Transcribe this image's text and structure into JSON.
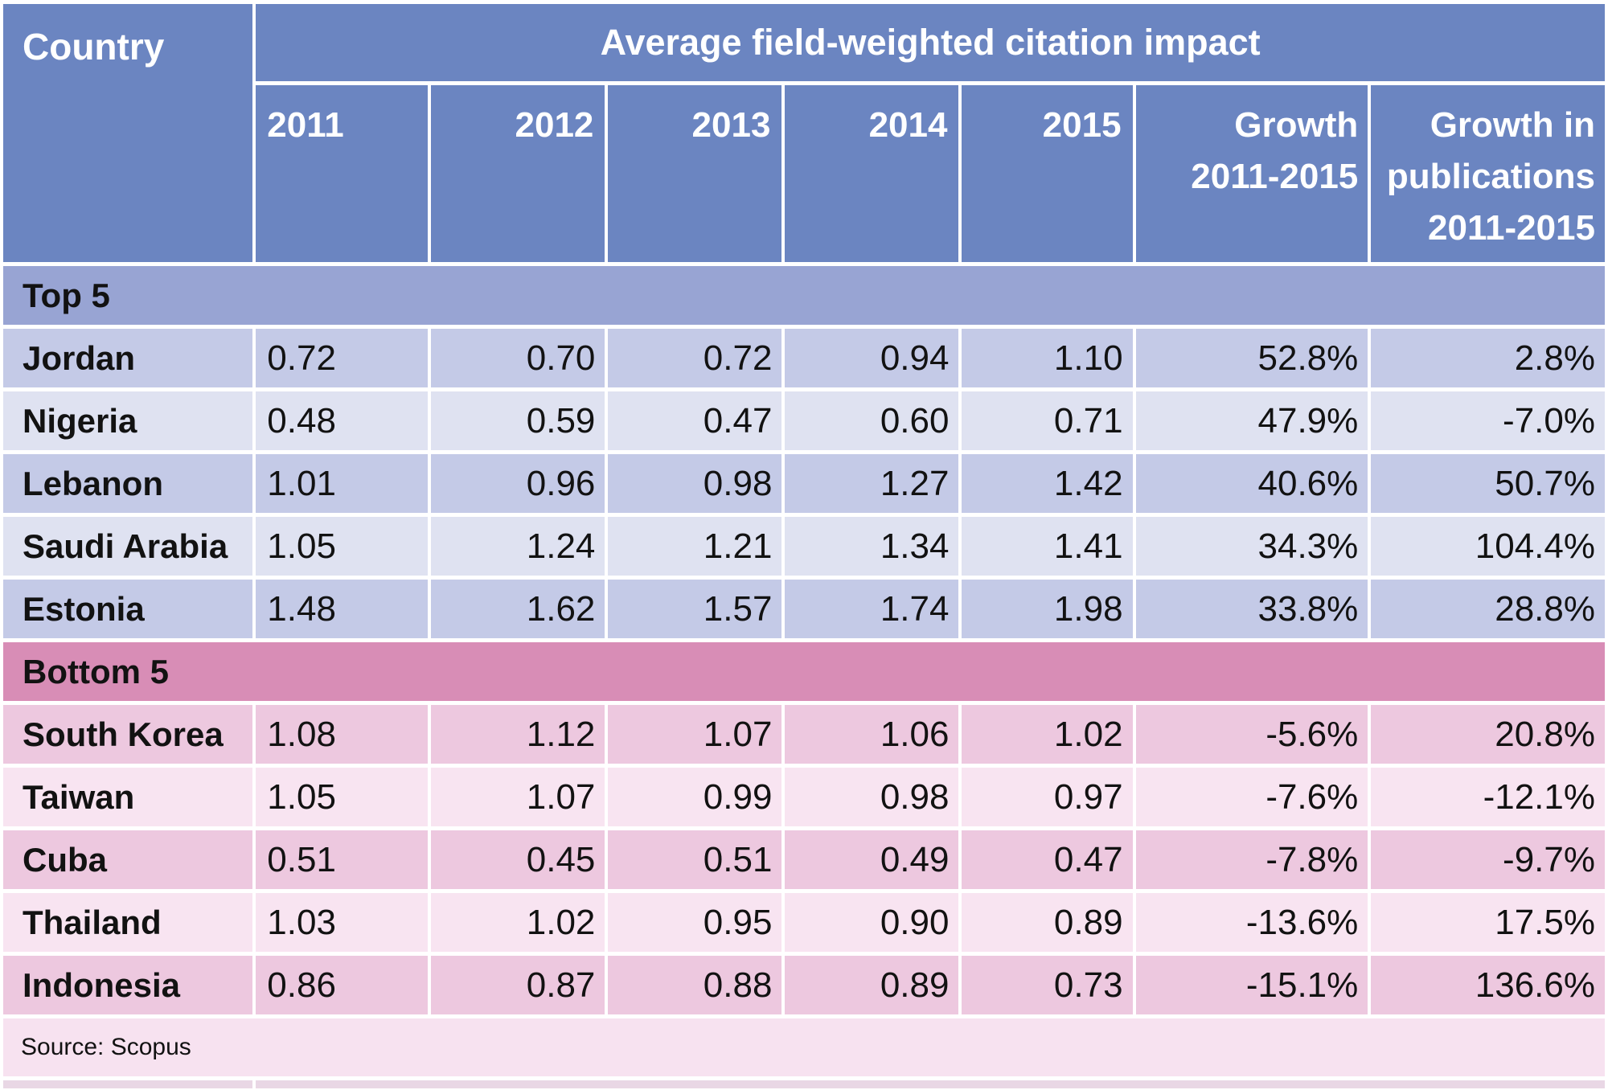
{
  "chart_data": {
    "type": "table",
    "title": "Average field-weighted citation impact",
    "header": {
      "country": "Country",
      "group": "Average field-weighted citation impact",
      "year_columns": [
        "2011",
        "2012",
        "2013",
        "2014",
        "2015"
      ],
      "growth_column": "Growth 2011-2015",
      "growth_pub_column": "Growth in publications 2011-2015"
    },
    "sections": [
      {
        "label": "Top 5",
        "theme": "blue",
        "rows": [
          {
            "country": "Jordan",
            "values": [
              "0.72",
              "0.70",
              "0.72",
              "0.94",
              "1.10",
              "52.8%",
              "2.8%"
            ]
          },
          {
            "country": "Nigeria",
            "values": [
              "0.48",
              "0.59",
              "0.47",
              "0.60",
              "0.71",
              "47.9%",
              "-7.0%"
            ]
          },
          {
            "country": "Lebanon",
            "values": [
              "1.01",
              "0.96",
              "0.98",
              "1.27",
              "1.42",
              "40.6%",
              "50.7%"
            ]
          },
          {
            "country": "Saudi Arabia",
            "values": [
              "1.05",
              "1.24",
              "1.21",
              "1.34",
              "1.41",
              "34.3%",
              "104.4%"
            ]
          },
          {
            "country": "Estonia",
            "values": [
              "1.48",
              "1.62",
              "1.57",
              "1.74",
              "1.98",
              "33.8%",
              "28.8%"
            ]
          }
        ]
      },
      {
        "label": "Bottom 5",
        "theme": "pink",
        "rows": [
          {
            "country": "South Korea",
            "values": [
              "1.08",
              "1.12",
              "1.07",
              "1.06",
              "1.02",
              "-5.6%",
              "20.8%"
            ]
          },
          {
            "country": "Taiwan",
            "values": [
              "1.05",
              "1.07",
              "0.99",
              "0.98",
              "0.97",
              "-7.6%",
              "-12.1%"
            ]
          },
          {
            "country": "Cuba",
            "values": [
              "0.51",
              "0.45",
              "0.51",
              "0.49",
              "0.47",
              "-7.8%",
              "-9.7%"
            ]
          },
          {
            "country": "Thailand",
            "values": [
              "1.03",
              "1.02",
              "0.95",
              "0.90",
              "0.89",
              "-13.6%",
              "17.5%"
            ]
          },
          {
            "country": "Indonesia",
            "values": [
              "0.86",
              "0.87",
              "0.88",
              "0.89",
              "0.73",
              "-15.1%",
              "136.6%"
            ]
          }
        ]
      }
    ],
    "source_note": "Source: Scopus",
    "colors": {
      "header_bg": "#6b85c1",
      "header_text": "#ffffff",
      "section_top_bg": "#98a4d3",
      "section_bottom_bg": "#d88db6",
      "row_blue_dark": "#c4cae7",
      "row_blue_light": "#dfe2f1",
      "row_pink_dark": "#edc8df",
      "row_pink_light": "#f8e4f1",
      "footer_bg": "#f7e2f0",
      "grid_lines": "#ffffff",
      "body_text": "#121212"
    }
  }
}
